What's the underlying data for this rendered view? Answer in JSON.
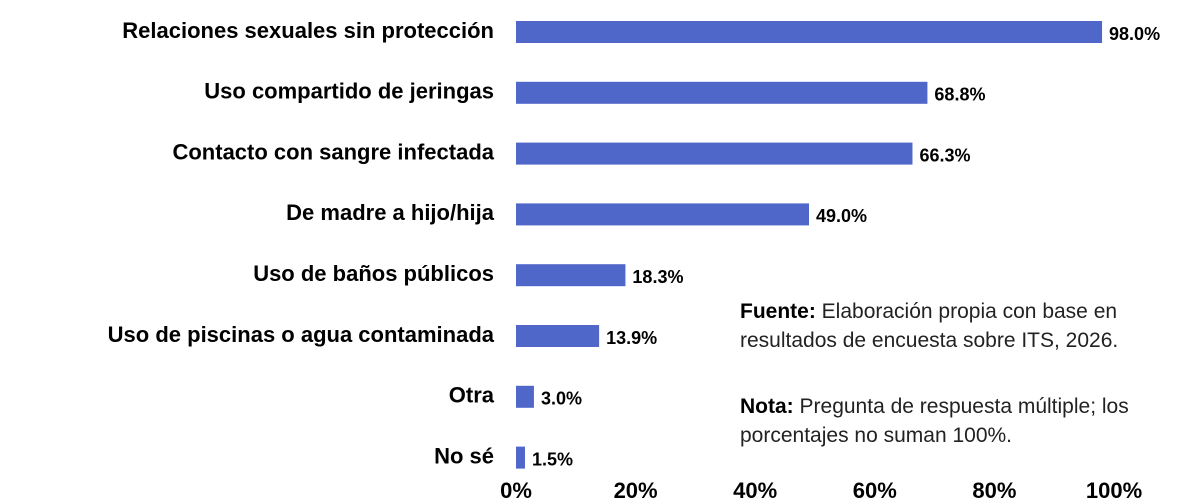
{
  "chart_data": {
    "type": "bar",
    "orientation": "horizontal",
    "categories": [
      "Relaciones sexuales sin protección",
      "Uso compartido de jeringas",
      "Contacto con sangre infectada",
      "De madre a hijo/hija",
      "Uso de baños públicos",
      "Uso de piscinas o agua contaminada",
      "Otra",
      "No sé"
    ],
    "values": [
      98.0,
      68.8,
      66.3,
      49.0,
      18.3,
      13.9,
      3.0,
      1.5
    ],
    "value_labels": [
      "98.0%",
      "68.8%",
      "66.3%",
      "49.0%",
      "18.3%",
      "13.9%",
      "3.0%",
      "1.5%"
    ],
    "color": "#4f67c9",
    "xlim": [
      0,
      100
    ],
    "xticks": [
      {
        "value": 0,
        "label": "0%"
      },
      {
        "value": 20,
        "label": "20%"
      },
      {
        "value": 40,
        "label": "40%"
      },
      {
        "value": 60,
        "label": "60%"
      },
      {
        "value": 80,
        "label": "80%"
      },
      {
        "value": 100,
        "label": "100%"
      }
    ],
    "grid": false,
    "notes": [
      {
        "label": "Fuente:",
        "text": "Elaboración propia con base en resultados de encuesta sobre ITS, 2026."
      },
      {
        "label": "Nota:",
        "text": "Pregunta de respuesta múltiple; los porcentajes no suman 100%."
      }
    ]
  }
}
